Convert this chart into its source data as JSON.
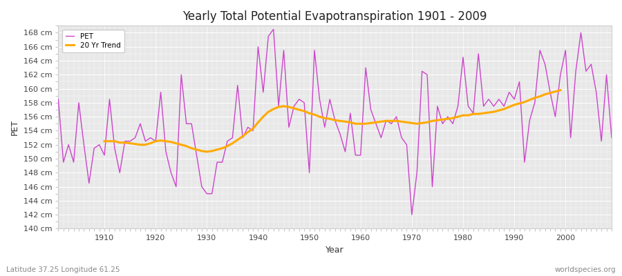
{
  "title": "Yearly Total Potential Evapotranspiration 1901 - 2009",
  "xlabel": "Year",
  "ylabel": "PET",
  "footnote_left": "Latitude 37.25 Longitude 61.25",
  "footnote_right": "worldspecies.org",
  "pet_color": "#cc44cc",
  "trend_color": "#ffaa00",
  "figure_bg_color": "#ffffff",
  "plot_bg_color": "#e8e8e8",
  "grid_color": "#ffffff",
  "ylim": [
    140,
    169
  ],
  "xlim_left": 1901,
  "xlim_right": 2009,
  "years": [
    1901,
    1902,
    1903,
    1904,
    1905,
    1906,
    1907,
    1908,
    1909,
    1910,
    1911,
    1912,
    1913,
    1914,
    1915,
    1916,
    1917,
    1918,
    1919,
    1920,
    1921,
    1922,
    1923,
    1924,
    1925,
    1926,
    1927,
    1928,
    1929,
    1930,
    1931,
    1932,
    1933,
    1934,
    1935,
    1936,
    1937,
    1938,
    1939,
    1940,
    1941,
    1942,
    1943,
    1944,
    1945,
    1946,
    1947,
    1948,
    1949,
    1950,
    1951,
    1952,
    1953,
    1954,
    1955,
    1956,
    1957,
    1958,
    1959,
    1960,
    1961,
    1962,
    1963,
    1964,
    1965,
    1966,
    1967,
    1968,
    1969,
    1970,
    1971,
    1972,
    1973,
    1974,
    1975,
    1976,
    1977,
    1978,
    1979,
    1980,
    1981,
    1982,
    1983,
    1984,
    1985,
    1986,
    1987,
    1988,
    1989,
    1990,
    1991,
    1992,
    1993,
    1994,
    1995,
    1996,
    1997,
    1998,
    1999,
    2000,
    2001,
    2002,
    2003,
    2004,
    2005,
    2006,
    2007,
    2008,
    2009
  ],
  "pet_values": [
    158.5,
    149.5,
    152.0,
    149.5,
    158.0,
    152.0,
    146.5,
    151.5,
    152.0,
    150.5,
    158.5,
    151.5,
    148.0,
    152.5,
    152.5,
    153.0,
    155.0,
    152.5,
    153.0,
    152.5,
    159.5,
    151.0,
    148.0,
    146.0,
    162.0,
    155.0,
    155.0,
    150.5,
    146.0,
    145.0,
    145.0,
    149.5,
    149.5,
    152.5,
    153.0,
    160.5,
    153.0,
    154.5,
    154.0,
    166.0,
    159.5,
    167.5,
    168.5,
    157.5,
    165.5,
    154.5,
    157.5,
    158.5,
    158.0,
    148.0,
    165.5,
    158.5,
    154.5,
    158.5,
    155.5,
    153.5,
    151.0,
    156.5,
    150.5,
    150.5,
    163.0,
    157.0,
    155.0,
    153.0,
    155.5,
    155.0,
    156.0,
    153.0,
    152.0,
    142.0,
    148.0,
    162.5,
    162.0,
    146.0,
    157.5,
    155.0,
    156.0,
    155.0,
    157.5,
    164.5,
    157.5,
    156.5,
    165.0,
    157.5,
    158.5,
    157.5,
    158.5,
    157.5,
    159.5,
    158.5,
    161.0,
    149.5,
    155.5,
    158.0,
    165.5,
    163.5,
    159.5,
    156.0,
    162.0,
    165.5,
    153.0,
    162.5,
    168.0,
    162.5,
    163.5,
    159.5,
    152.5,
    162.0,
    153.0
  ],
  "trend_values": [
    null,
    null,
    null,
    null,
    null,
    null,
    null,
    null,
    null,
    152.5,
    152.5,
    152.5,
    152.3,
    152.3,
    152.2,
    152.1,
    152.0,
    152.0,
    152.2,
    152.5,
    152.6,
    152.5,
    152.4,
    152.2,
    152.0,
    151.8,
    151.5,
    151.3,
    151.1,
    151.0,
    151.1,
    151.3,
    151.5,
    151.8,
    152.2,
    152.7,
    153.2,
    153.8,
    154.3,
    155.2,
    156.0,
    156.7,
    157.1,
    157.4,
    157.5,
    157.4,
    157.2,
    157.0,
    156.8,
    156.5,
    156.3,
    156.0,
    155.8,
    155.7,
    155.5,
    155.4,
    155.3,
    155.2,
    155.0,
    155.0,
    155.0,
    155.1,
    155.2,
    155.3,
    155.4,
    155.4,
    155.4,
    155.3,
    155.2,
    155.1,
    155.0,
    155.1,
    155.2,
    155.4,
    155.5,
    155.6,
    155.7,
    155.8,
    156.0,
    156.2,
    156.2,
    156.4,
    156.4,
    156.5,
    156.6,
    156.7,
    156.9,
    157.1,
    157.4,
    157.7,
    157.9,
    158.1,
    158.4,
    158.7,
    158.9,
    159.2,
    159.4,
    159.6,
    159.8,
    null,
    null,
    null,
    null,
    null,
    null,
    null,
    null,
    null,
    null
  ]
}
